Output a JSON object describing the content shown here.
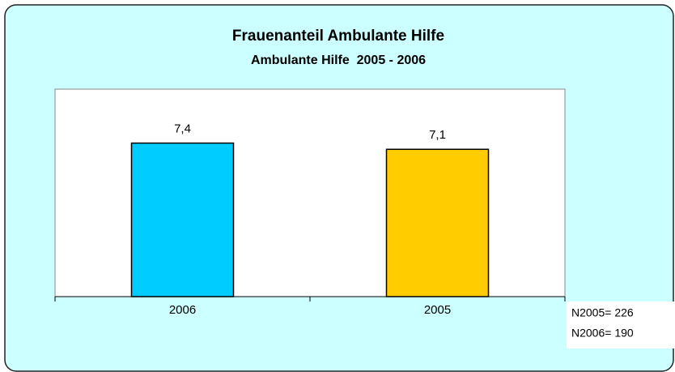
{
  "chart_data": {
    "type": "bar",
    "title": "Frauenanteil Ambulante Hilfe",
    "subtitle": "Ambulante Hilfe  2005 - 2006",
    "categories": [
      "2006",
      "2005"
    ],
    "values": [
      7.4,
      7.1
    ],
    "value_labels": [
      "7,4",
      "7,1"
    ],
    "colors": [
      "#00ccff",
      "#ffcc00"
    ],
    "ylim": [
      0,
      10
    ],
    "annotations": [
      "N2005= 226",
      "N2006= 190"
    ]
  }
}
